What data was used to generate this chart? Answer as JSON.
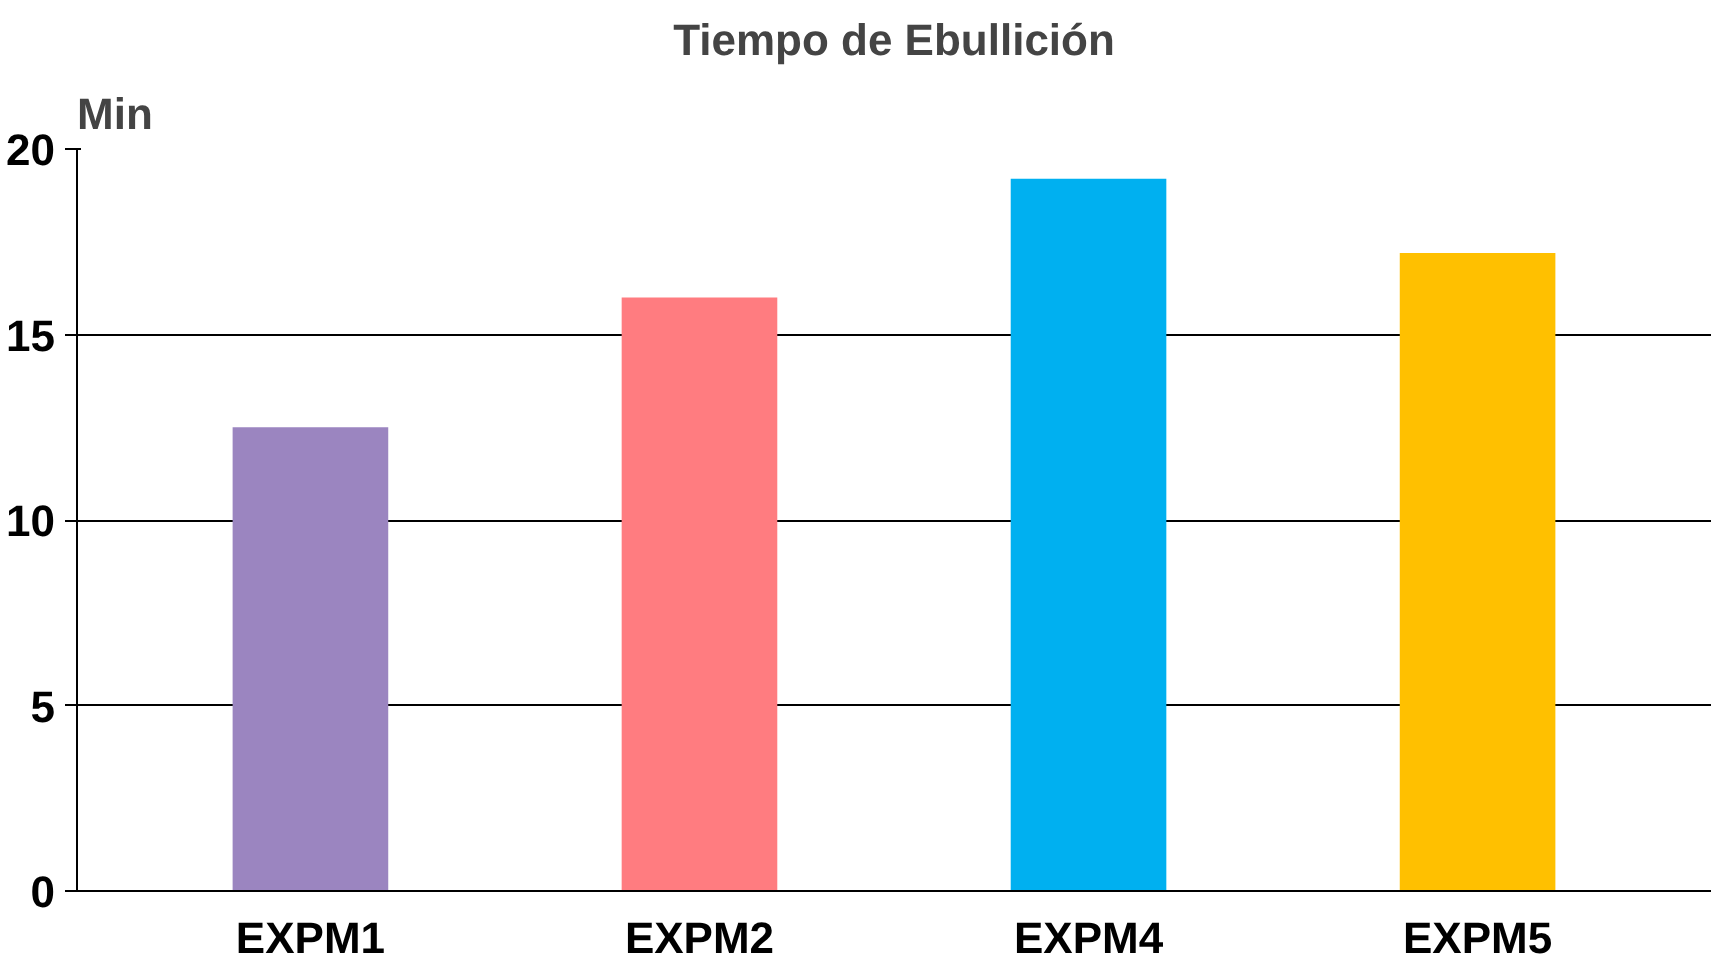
{
  "chart_data": {
    "type": "bar",
    "title": "Tiempo de Ebullición",
    "ylabel": "Min",
    "categories": [
      "EXPM1",
      "EXPM2",
      "EXPM4",
      "EXPM5"
    ],
    "values": [
      12.5,
      16,
      19.2,
      17.2
    ],
    "colors": [
      "#9b85c0",
      "#ff7c80",
      "#00b0f0",
      "#ffc000"
    ],
    "ylim": [
      0,
      20
    ],
    "yticks": [
      0,
      5,
      10,
      15,
      20
    ],
    "grid": "y"
  }
}
